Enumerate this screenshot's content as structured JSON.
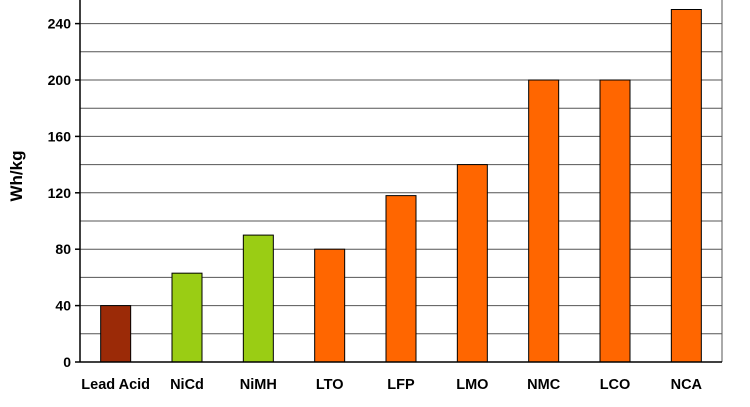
{
  "chart_data": {
    "type": "bar",
    "title": "",
    "xlabel": "",
    "ylabel": "Wh/kg",
    "ylim": [
      0,
      240
    ],
    "yticks": [
      0,
      40,
      80,
      120,
      160,
      200,
      240
    ],
    "grid": true,
    "categories": [
      "Lead Acid",
      "NiCd",
      "NiMH",
      "LTO",
      "LFP",
      "LMO",
      "NMC",
      "LCO",
      "NCA"
    ],
    "values": [
      40,
      63,
      90,
      80,
      118,
      140,
      200,
      200,
      250
    ],
    "bar_colors": [
      "#9B2A07",
      "#9ACD14",
      "#9ACD14",
      "#FF6600",
      "#FF6600",
      "#FF6600",
      "#FF6600",
      "#FF6600",
      "#FF6600"
    ]
  }
}
